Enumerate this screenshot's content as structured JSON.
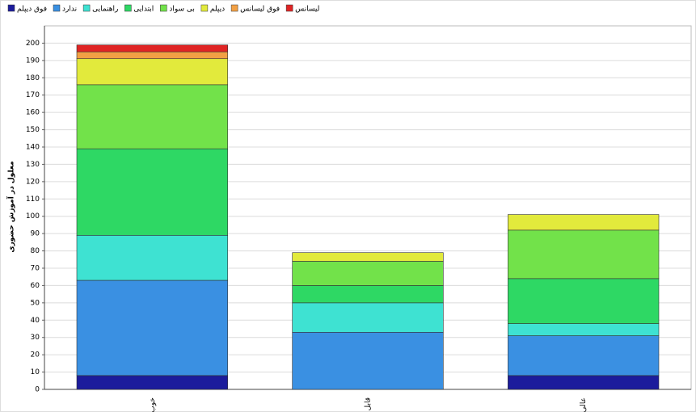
{
  "chart_data": {
    "type": "stacked_bar",
    "y_label": "معلول در آموزش حضوری",
    "categories": [
      "خوب",
      "قابل قبول",
      "عالی"
    ],
    "series": [
      {
        "name": "فوق دیپلم",
        "color": "#1c1c9c",
        "values": [
          8,
          0,
          8
        ]
      },
      {
        "name": "ندارد",
        "color": "#3a90e2",
        "values": [
          55,
          33,
          23
        ]
      },
      {
        "name": "راهنمایی",
        "color": "#3ee2d2",
        "values": [
          26,
          17,
          7
        ]
      },
      {
        "name": "ابتدایی",
        "color": "#2ed864",
        "values": [
          50,
          10,
          26
        ]
      },
      {
        "name": "بی سواد",
        "color": "#72e24a",
        "values": [
          37,
          14,
          28
        ]
      },
      {
        "name": "دیپلم",
        "color": "#e2ea3c",
        "values": [
          15,
          5,
          9
        ]
      },
      {
        "name": "فوق لیسانس",
        "color": "#f2a044",
        "values": [
          4,
          0,
          0
        ]
      },
      {
        "name": "لیسانس",
        "color": "#e02424",
        "values": [
          4,
          0,
          0
        ]
      }
    ],
    "ylim": [
      0,
      210
    ],
    "yticks": [
      0,
      10,
      20,
      30,
      40,
      50,
      60,
      70,
      80,
      90,
      100,
      110,
      120,
      130,
      140,
      150,
      160,
      170,
      180,
      190,
      200
    ],
    "grid": true
  }
}
